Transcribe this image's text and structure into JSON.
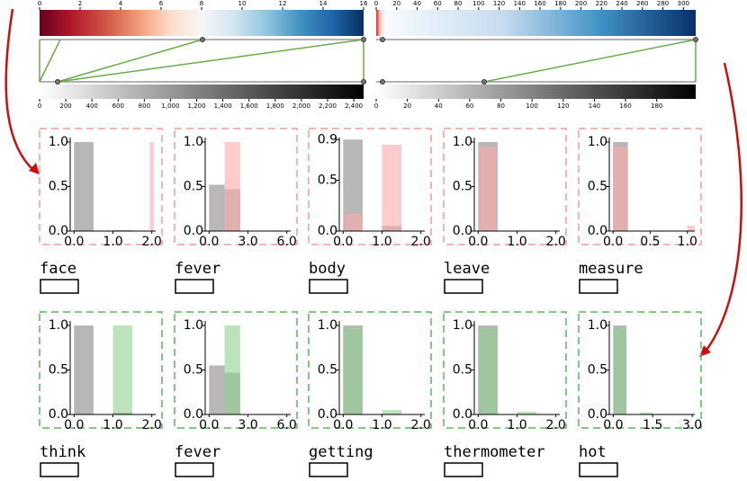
{
  "colorbars": [
    {
      "lim": [
        0,
        16
      ],
      "ticks": [
        0,
        2,
        4,
        6,
        8,
        10,
        12,
        14,
        16
      ]
    },
    {
      "lim": [
        0,
        305
      ],
      "ticks": [
        0,
        20,
        40,
        60,
        80,
        100,
        120,
        140,
        160,
        180,
        200,
        220,
        240,
        260,
        280,
        300
      ]
    },
    {
      "lim": [
        0,
        2475
      ],
      "ticks": [
        0,
        200,
        400,
        600,
        800,
        {
          "value": 1000,
          "label": "1,000"
        },
        {
          "value": 1200,
          "label": "1,200"
        },
        {
          "value": 1400,
          "label": "1,400"
        },
        {
          "value": 1600,
          "label": "1,600"
        },
        {
          "value": 1800,
          "label": "1,800"
        },
        {
          "value": 2000,
          "label": "2,000"
        },
        {
          "value": 2200,
          "label": "2,200"
        },
        {
          "value": 2400,
          "label": "2,400"
        }
      ]
    },
    {
      "lim": [
        0,
        205
      ],
      "ticks": [
        0,
        20,
        40,
        60,
        80,
        100,
        120,
        140,
        160,
        180
      ]
    }
  ],
  "panels": [
    {
      "word": "face",
      "color": "#ffaaaa",
      "border": "#f29a9a",
      "xlim": [
        -0.1,
        2.1
      ],
      "ylim": [
        0,
        1.05
      ],
      "xticks": [
        {
          "value": 0,
          "label": "0.0"
        },
        {
          "value": 1,
          "label": "1.0"
        },
        {
          "value": 2,
          "label": "2.0"
        }
      ],
      "yticks": [
        {
          "value": 0,
          "label": "0.0"
        },
        {
          "value": 0.5,
          "label": "0.5"
        },
        {
          "value": 1,
          "label": "1.0"
        }
      ],
      "bins": [
        0,
        0.5,
        1,
        1.5,
        1.95,
        2.05
      ],
      "gray": [
        1,
        0,
        0.01,
        0,
        0
      ],
      "colored": [
        0,
        0,
        0,
        0,
        1
      ]
    },
    {
      "word": "fever",
      "color": "#ffaaaa",
      "border": "#f29a9a",
      "xlim": [
        -0.3,
        6.3
      ],
      "ylim": [
        0,
        1.05
      ],
      "xticks": [
        {
          "value": 0,
          "label": "0.0"
        },
        {
          "value": 3,
          "label": "3.0"
        },
        {
          "value": 6,
          "label": "6.0"
        }
      ],
      "yticks": [
        {
          "value": 0,
          "label": "0.0"
        },
        {
          "value": 0.5,
          "label": "0.5"
        },
        {
          "value": 1,
          "label": "1.0"
        }
      ],
      "bins": [
        0,
        1.2,
        2.4
      ],
      "gray": [
        0.52,
        0.47
      ],
      "colored": [
        0,
        1
      ]
    },
    {
      "word": "body",
      "color": "#ffaaaa",
      "border": "#f29a9a",
      "xlim": [
        -0.1,
        2.1
      ],
      "ylim": [
        0,
        0.92
      ],
      "xticks": [
        {
          "value": 0,
          "label": "0.0"
        },
        {
          "value": 1,
          "label": "1.0"
        },
        {
          "value": 2,
          "label": "2.0"
        }
      ],
      "yticks": [
        {
          "value": 0,
          "label": "0.0"
        },
        {
          "value": 0.5,
          "label": "0.5"
        },
        {
          "value": 0.9,
          "label": "0.9"
        }
      ],
      "bins": [
        0,
        0.5,
        1,
        1.5
      ],
      "gray": [
        0.9,
        0,
        0.05
      ],
      "colored": [
        0.17,
        0,
        0.85
      ]
    },
    {
      "word": "leave",
      "color": "#ffaaaa",
      "border": "#f29a9a",
      "xlim": [
        -0.1,
        2.1
      ],
      "ylim": [
        0,
        1.05
      ],
      "xticks": [
        {
          "value": 0,
          "label": "0.0"
        },
        {
          "value": 1,
          "label": "1.0"
        },
        {
          "value": 2,
          "label": "2.0"
        }
      ],
      "yticks": [
        {
          "value": 0,
          "label": "0.0"
        },
        {
          "value": 0.5,
          "label": "0.5"
        },
        {
          "value": 1,
          "label": "1.0"
        }
      ],
      "bins": [
        0,
        0.5,
        1,
        1.5,
        1.95,
        2.05
      ],
      "gray": [
        1,
        0,
        0,
        0,
        0
      ],
      "colored": [
        0.95,
        0,
        0,
        0,
        0.01
      ]
    },
    {
      "word": "measure",
      "color": "#ffaaaa",
      "border": "#f29a9a",
      "xlim": [
        -0.05,
        1.1
      ],
      "ylim": [
        0,
        1.05
      ],
      "xticks": [
        {
          "value": 0,
          "label": "0.0"
        },
        {
          "value": 0.5,
          "label": "0.5"
        },
        {
          "value": 1,
          "label": "1.0"
        }
      ],
      "yticks": [
        {
          "value": 0,
          "label": "0.0"
        },
        {
          "value": 0.5,
          "label": "0.5"
        },
        {
          "value": 1,
          "label": "1.0"
        }
      ],
      "bins": [
        0,
        0.2,
        1,
        1.1
      ],
      "gray": [
        1,
        0,
        0
      ],
      "colored": [
        0.95,
        0,
        0.06
      ]
    },
    {
      "word": "think",
      "color": "#8fd08f",
      "border": "#5bb35b",
      "xlim": [
        -0.1,
        2.1
      ],
      "ylim": [
        0,
        1.05
      ],
      "xticks": [
        {
          "value": 0,
          "label": "0.0"
        },
        {
          "value": 1,
          "label": "1.0"
        },
        {
          "value": 2,
          "label": "2.0"
        }
      ],
      "yticks": [
        {
          "value": 0,
          "label": "0.0"
        },
        {
          "value": 0.5,
          "label": "0.5"
        },
        {
          "value": 1,
          "label": "1.0"
        }
      ],
      "bins": [
        0,
        0.5,
        1,
        1.5
      ],
      "gray": [
        1,
        0,
        0.02
      ],
      "colored": [
        0,
        0,
        1
      ]
    },
    {
      "word": "fever",
      "color": "#8fd08f",
      "border": "#5bb35b",
      "xlim": [
        -0.3,
        6.3
      ],
      "ylim": [
        0,
        1.05
      ],
      "xticks": [
        {
          "value": 0,
          "label": "0.0"
        },
        {
          "value": 3,
          "label": "3.0"
        },
        {
          "value": 6,
          "label": "6.0"
        }
      ],
      "yticks": [
        {
          "value": 0,
          "label": "0.0"
        },
        {
          "value": 0.5,
          "label": "0.5"
        },
        {
          "value": 1,
          "label": "1.0"
        }
      ],
      "bins": [
        0,
        1.2,
        2.4
      ],
      "gray": [
        0.55,
        0.47
      ],
      "colored": [
        0,
        1
      ]
    },
    {
      "word": "getting",
      "color": "#8fd08f",
      "border": "#5bb35b",
      "xlim": [
        -0.1,
        2.1
      ],
      "ylim": [
        0,
        1.05
      ],
      "xticks": [
        {
          "value": 0,
          "label": "0.0"
        },
        {
          "value": 1,
          "label": "1.0"
        },
        {
          "value": 2,
          "label": "2.0"
        }
      ],
      "yticks": [
        {
          "value": 0,
          "label": "0.0"
        },
        {
          "value": 0.5,
          "label": "0.5"
        },
        {
          "value": 1,
          "label": "1.0"
        }
      ],
      "bins": [
        0,
        0.5,
        1,
        1.5
      ],
      "gray": [
        1,
        0,
        0
      ],
      "colored": [
        0.97,
        0,
        0.05
      ]
    },
    {
      "word": "thermometer",
      "color": "#8fd08f",
      "border": "#5bb35b",
      "xlim": [
        -0.1,
        2.1
      ],
      "ylim": [
        0,
        1.05
      ],
      "xticks": [
        {
          "value": 0,
          "label": "0.0"
        },
        {
          "value": 1,
          "label": "1.0"
        },
        {
          "value": 2,
          "label": "2.0"
        }
      ],
      "yticks": [
        {
          "value": 0,
          "label": "0.0"
        },
        {
          "value": 0.5,
          "label": "0.5"
        },
        {
          "value": 1,
          "label": "1.0"
        }
      ],
      "bins": [
        0,
        0.5,
        1,
        1.5
      ],
      "gray": [
        1,
        0,
        0
      ],
      "colored": [
        0.97,
        0,
        0.03
      ]
    },
    {
      "word": "hot",
      "color": "#8fd08f",
      "border": "#5bb35b",
      "xlim": [
        -0.15,
        3.1
      ],
      "ylim": [
        0,
        1.05
      ],
      "xticks": [
        {
          "value": 0,
          "label": "0.0"
        },
        {
          "value": 1.5,
          "label": "1.5"
        },
        {
          "value": 3,
          "label": "3.0"
        }
      ],
      "yticks": [
        {
          "value": 0,
          "label": "0.0"
        },
        {
          "value": 0.5,
          "label": "0.5"
        },
        {
          "value": 1,
          "label": "1.0"
        }
      ],
      "bins": [
        0,
        0.5,
        1,
        1.5
      ],
      "gray": [
        1,
        0,
        0
      ],
      "colored": [
        0.97,
        0,
        0.02
      ]
    }
  ]
}
